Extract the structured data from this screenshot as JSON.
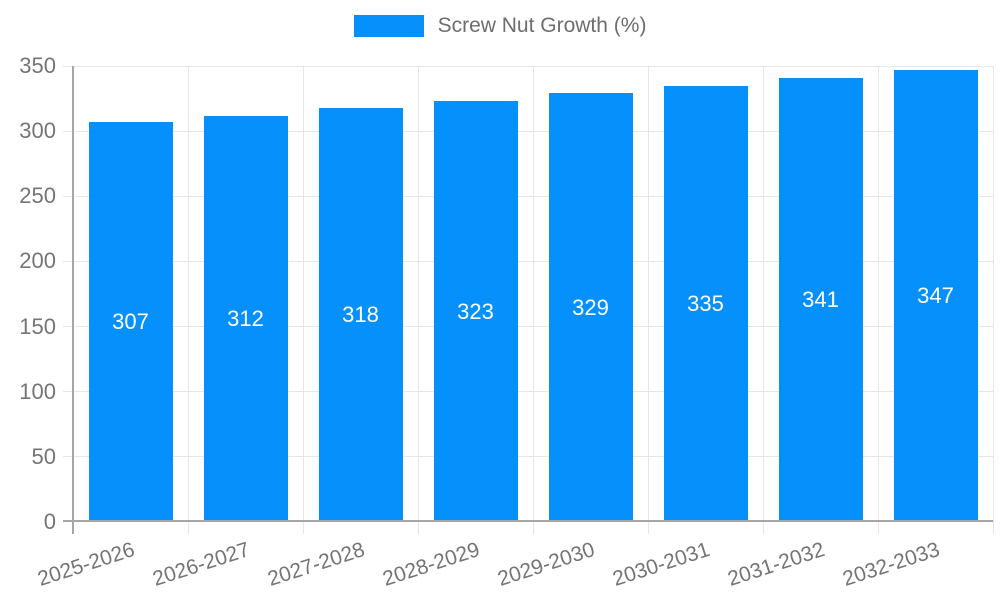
{
  "chart_data": {
    "type": "bar",
    "title": "",
    "legend": {
      "position": "top",
      "label": "Screw Nut Growth (%)"
    },
    "categories": [
      "2025-2026",
      "2026-2027",
      "2027-2028",
      "2028-2029",
      "2029-2030",
      "2030-2031",
      "2031-2032",
      "2032-2033"
    ],
    "series": [
      {
        "name": "Screw Nut Growth (%)",
        "values": [
          307,
          312,
          318,
          323,
          329,
          335,
          341,
          347
        ]
      }
    ],
    "ylim": [
      0,
      350
    ],
    "yticks": [
      0,
      50,
      100,
      150,
      200,
      250,
      300,
      350
    ],
    "grid": true,
    "bar_value_labels_visible": true,
    "x_label_rotation_deg": -18,
    "colors": {
      "bar": "#0590FB",
      "grid": "#e6e6e6",
      "axis": "#a6a6a6",
      "tick_text": "#757575",
      "legend_text": "#6e6e6e",
      "value_label_text": "#ffffff",
      "background": "#ffffff"
    }
  }
}
